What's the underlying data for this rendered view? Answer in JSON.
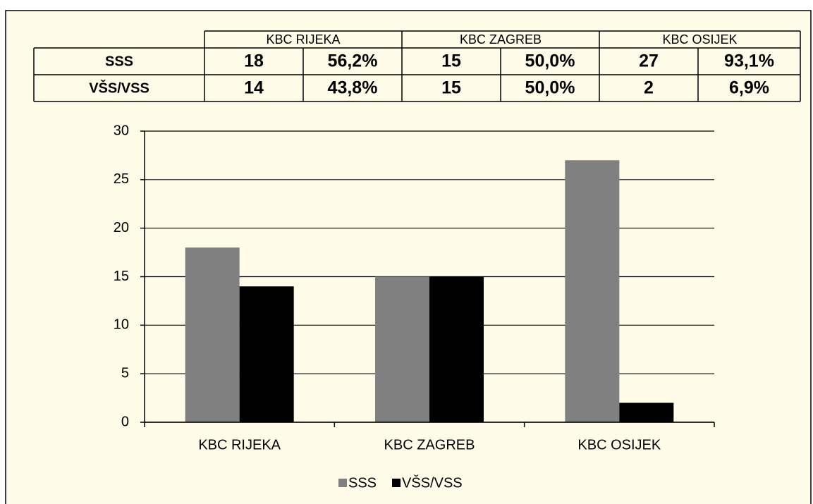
{
  "chart_data": {
    "type": "bar",
    "categories": [
      "KBC RIJEKA",
      "KBC ZAGREB",
      "KBC OSIJEK"
    ],
    "series": [
      {
        "name": "SSS",
        "color": "#808080",
        "values": [
          18,
          15,
          27
        ]
      },
      {
        "name": "VŠS/VSS",
        "color": "#000000",
        "values": [
          14,
          15,
          2
        ]
      }
    ],
    "ylim": [
      0,
      30
    ],
    "yticks": [
      0,
      5,
      10,
      15,
      20,
      25,
      30
    ],
    "grid": true,
    "legend": "bottom"
  },
  "table": {
    "percentages": [
      [
        "56,2%",
        "50,0%",
        "93,1%"
      ],
      [
        "43,8%",
        "50,0%",
        "6,9%"
      ]
    ]
  }
}
